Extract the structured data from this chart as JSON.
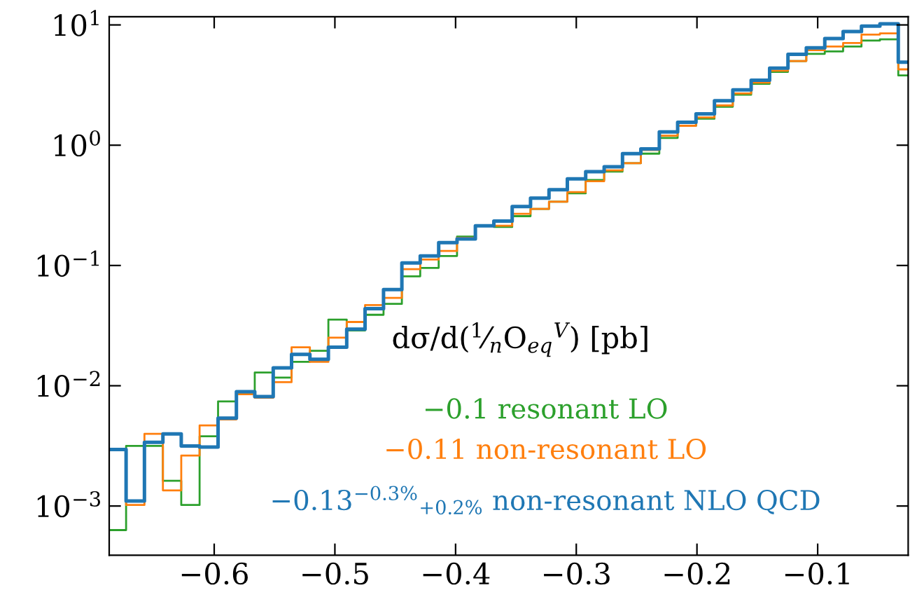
{
  "chart_data": {
    "type": "histogram",
    "log": "y",
    "grid": false,
    "legend": false,
    "line_style": "solid",
    "annotations": [
      "dσ/d($^{1}$⁄$_{n}$O$_{eq}$$^{V}$) [pb]"
    ],
    "bins": [
      -0.687,
      -0.673,
      -0.6578,
      -0.6425,
      -0.6273,
      -0.6121,
      -0.5968,
      -0.5816,
      -0.5664,
      -0.5511,
      -0.5359,
      -0.5207,
      -0.5054,
      -0.4902,
      -0.475,
      -0.4597,
      -0.4445,
      -0.4293,
      -0.414,
      -0.3988,
      -0.3836,
      -0.3683,
      -0.3531,
      -0.3379,
      -0.3226,
      -0.3074,
      -0.2922,
      -0.2769,
      -0.2617,
      -0.2465,
      -0.2312,
      -0.216,
      -0.2008,
      -0.1855,
      -0.1703,
      -0.1551,
      -0.1398,
      -0.1246,
      -0.1094,
      -0.0941,
      -0.0789,
      -0.0637,
      -0.0484,
      -0.0332,
      -0.025
    ],
    "series": [
      {
        "name": "−0.1 resonant LO",
        "color": "#2ca02c",
        "values": [
          0.000631,
          0.00316,
          0.00316,
          0.00162,
          0.00102,
          0.0038,
          0.00741,
          0.00851,
          0.0129,
          0.0117,
          0.0158,
          0.0195,
          0.0355,
          0.0288,
          0.0389,
          0.0479,
          0.0813,
          0.0955,
          0.12,
          0.174,
          0.214,
          0.209,
          0.257,
          0.295,
          0.339,
          0.398,
          0.513,
          0.603,
          0.708,
          0.851,
          1.15,
          1.45,
          1.66,
          2.09,
          2.63,
          3.24,
          4.07,
          5.01,
          5.75,
          6.03,
          6.61,
          7.41,
          7.59,
          3.8
        ]
      },
      {
        "name": "−0.11 non-resonant LO",
        "color": "#ff7f0e",
        "values": [
          0.00295,
          0.00102,
          0.00398,
          0.00135,
          0.00263,
          0.00468,
          0.00525,
          0.00851,
          0.00794,
          0.0107,
          0.0209,
          0.0158,
          0.0251,
          0.0339,
          0.0468,
          0.0537,
          0.0933,
          0.112,
          0.132,
          0.17,
          0.214,
          0.214,
          0.269,
          0.295,
          0.339,
          0.407,
          0.501,
          0.617,
          0.708,
          0.912,
          1.2,
          1.45,
          1.7,
          2.14,
          2.69,
          3.31,
          4.17,
          5.01,
          6.17,
          6.61,
          7.08,
          8.32,
          8.51,
          4.27
        ]
      },
      {
        "name": "−0.13$^{−0.3%}$$_{+0.2%}$ non-resonant NLO QCD",
        "color": "#1f77b4",
        "values": [
          0.00295,
          0.0011,
          0.00339,
          0.00398,
          0.00316,
          0.00309,
          0.00537,
          0.00891,
          0.00813,
          0.0141,
          0.0182,
          0.0166,
          0.0209,
          0.0295,
          0.0437,
          0.0631,
          0.105,
          0.12,
          0.155,
          0.166,
          0.214,
          0.234,
          0.309,
          0.363,
          0.427,
          0.525,
          0.603,
          0.661,
          0.851,
          0.933,
          1.29,
          1.55,
          1.82,
          2.34,
          2.88,
          3.47,
          4.37,
          5.69,
          6.46,
          7.71,
          8.81,
          9.77,
          10.2,
          4.9
        ]
      }
    ],
    "xlim": [
      -0.687,
      -0.025
    ],
    "xticks": [
      {
        "value": -0.6,
        "label": "−0.6"
      },
      {
        "value": -0.5,
        "label": "−0.5"
      },
      {
        "value": -0.4,
        "label": "−0.4"
      },
      {
        "value": -0.3,
        "label": "−0.3"
      },
      {
        "value": -0.2,
        "label": "−0.2"
      },
      {
        "value": -0.1,
        "label": "−0.1"
      }
    ],
    "ylim": [
      0.00039,
      11.7
    ],
    "yticks": [
      {
        "value": 0.001,
        "label": "10$^{−3}$"
      },
      {
        "value": 0.01,
        "label": "10$^{−2}$"
      },
      {
        "value": 0.1,
        "label": "10$^{−1}$"
      },
      {
        "value": 1,
        "label": "10$^{0}$"
      },
      {
        "value": 10,
        "label": "10$^{1}$"
      }
    ]
  }
}
